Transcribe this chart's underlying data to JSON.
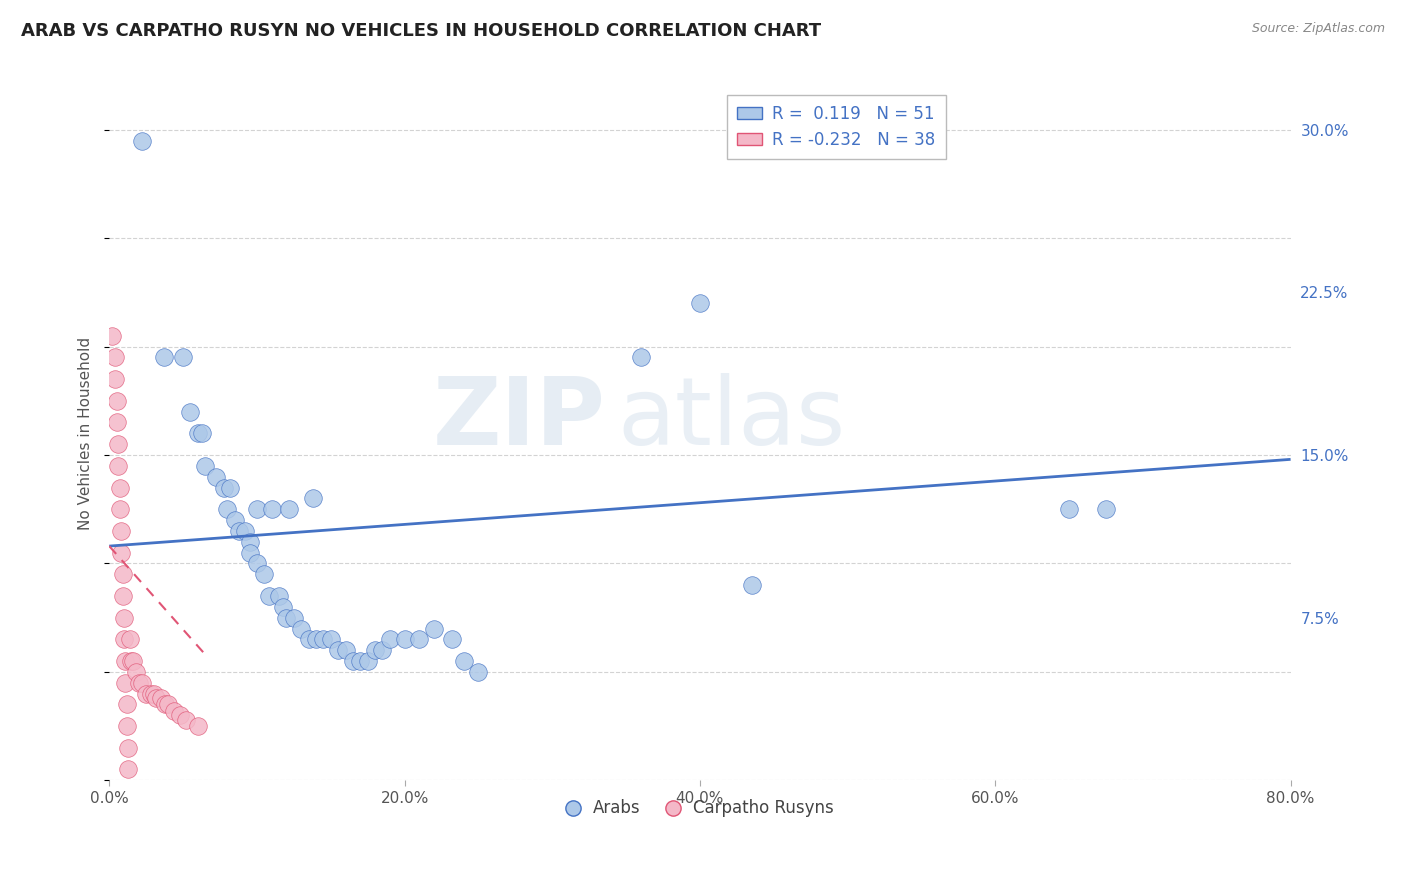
{
  "title": "ARAB VS CARPATHO RUSYN NO VEHICLES IN HOUSEHOLD CORRELATION CHART",
  "source": "Source: ZipAtlas.com",
  "ylabel": "No Vehicles in Household",
  "xlim": [
    0.0,
    0.8
  ],
  "ylim": [
    0.0,
    0.32
  ],
  "xticks": [
    0.0,
    0.2,
    0.4,
    0.6,
    0.8
  ],
  "xticklabels": [
    "0.0%",
    "20.0%",
    "40.0%",
    "60.0%",
    "80.0%"
  ],
  "yticks": [
    0.0,
    0.075,
    0.15,
    0.225,
    0.3
  ],
  "yticklabels": [
    "",
    "7.5%",
    "15.0%",
    "22.5%",
    "30.0%"
  ],
  "arab_R": 0.119,
  "arab_N": 51,
  "carpatho_R": -0.232,
  "carpatho_N": 38,
  "arab_color": "#adc8e8",
  "carpatho_color": "#f4b8c8",
  "arab_line_color": "#4472c4",
  "carpatho_line_color": "#e05575",
  "watermark_zip": "ZIP",
  "watermark_atlas": "atlas",
  "background_color": "#ffffff",
  "grid_color": "#c8c8c8",
  "arab_line_x": [
    0.0,
    0.8
  ],
  "arab_line_y": [
    0.108,
    0.148
  ],
  "carpatho_line_x": [
    0.0,
    0.065
  ],
  "carpatho_line_y": [
    0.108,
    0.058
  ],
  "arab_points": [
    [
      0.022,
      0.295
    ],
    [
      0.037,
      0.195
    ],
    [
      0.05,
      0.195
    ],
    [
      0.055,
      0.17
    ],
    [
      0.06,
      0.16
    ],
    [
      0.063,
      0.16
    ],
    [
      0.065,
      0.145
    ],
    [
      0.072,
      0.14
    ],
    [
      0.078,
      0.135
    ],
    [
      0.08,
      0.125
    ],
    [
      0.082,
      0.135
    ],
    [
      0.085,
      0.12
    ],
    [
      0.088,
      0.115
    ],
    [
      0.092,
      0.115
    ],
    [
      0.095,
      0.11
    ],
    [
      0.095,
      0.105
    ],
    [
      0.1,
      0.1
    ],
    [
      0.1,
      0.125
    ],
    [
      0.105,
      0.095
    ],
    [
      0.108,
      0.085
    ],
    [
      0.11,
      0.125
    ],
    [
      0.115,
      0.085
    ],
    [
      0.118,
      0.08
    ],
    [
      0.12,
      0.075
    ],
    [
      0.122,
      0.125
    ],
    [
      0.125,
      0.075
    ],
    [
      0.13,
      0.07
    ],
    [
      0.135,
      0.065
    ],
    [
      0.138,
      0.13
    ],
    [
      0.14,
      0.065
    ],
    [
      0.145,
      0.065
    ],
    [
      0.15,
      0.065
    ],
    [
      0.155,
      0.06
    ],
    [
      0.16,
      0.06
    ],
    [
      0.165,
      0.055
    ],
    [
      0.17,
      0.055
    ],
    [
      0.175,
      0.055
    ],
    [
      0.18,
      0.06
    ],
    [
      0.185,
      0.06
    ],
    [
      0.19,
      0.065
    ],
    [
      0.2,
      0.065
    ],
    [
      0.21,
      0.065
    ],
    [
      0.22,
      0.07
    ],
    [
      0.232,
      0.065
    ],
    [
      0.24,
      0.055
    ],
    [
      0.25,
      0.05
    ],
    [
      0.36,
      0.195
    ],
    [
      0.4,
      0.22
    ],
    [
      0.435,
      0.09
    ],
    [
      0.65,
      0.125
    ],
    [
      0.675,
      0.125
    ]
  ],
  "carpatho_points": [
    [
      0.002,
      0.205
    ],
    [
      0.004,
      0.195
    ],
    [
      0.004,
      0.185
    ],
    [
      0.005,
      0.175
    ],
    [
      0.005,
      0.165
    ],
    [
      0.006,
      0.155
    ],
    [
      0.006,
      0.145
    ],
    [
      0.007,
      0.135
    ],
    [
      0.007,
      0.125
    ],
    [
      0.008,
      0.115
    ],
    [
      0.008,
      0.105
    ],
    [
      0.009,
      0.095
    ],
    [
      0.009,
      0.085
    ],
    [
      0.01,
      0.075
    ],
    [
      0.01,
      0.065
    ],
    [
      0.011,
      0.055
    ],
    [
      0.011,
      0.045
    ],
    [
      0.012,
      0.035
    ],
    [
      0.012,
      0.025
    ],
    [
      0.013,
      0.015
    ],
    [
      0.013,
      0.005
    ],
    [
      0.014,
      0.065
    ],
    [
      0.015,
      0.055
    ],
    [
      0.016,
      0.055
    ],
    [
      0.018,
      0.05
    ],
    [
      0.02,
      0.045
    ],
    [
      0.022,
      0.045
    ],
    [
      0.025,
      0.04
    ],
    [
      0.028,
      0.04
    ],
    [
      0.03,
      0.04
    ],
    [
      0.032,
      0.038
    ],
    [
      0.035,
      0.038
    ],
    [
      0.038,
      0.035
    ],
    [
      0.04,
      0.035
    ],
    [
      0.044,
      0.032
    ],
    [
      0.048,
      0.03
    ],
    [
      0.052,
      0.028
    ],
    [
      0.06,
      0.025
    ]
  ]
}
